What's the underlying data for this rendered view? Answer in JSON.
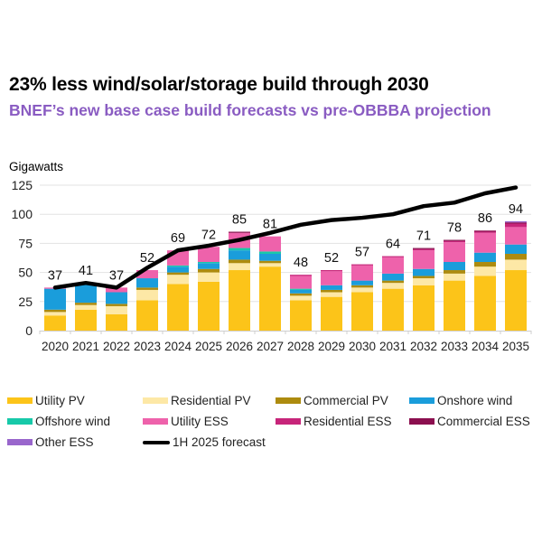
{
  "chart_data": {
    "type": "bar",
    "stacked": true,
    "title": "23% less wind/solar/storage build through 2030",
    "subtitle": "BNEF’s new base case build forecasts vs pre-OBBBA projection",
    "ylabel": "Gigawatts",
    "xlabel": "",
    "ylim": [
      0,
      125
    ],
    "yticks": [
      0,
      25,
      50,
      75,
      100,
      125
    ],
    "grid": true,
    "legend_position": "bottom",
    "categories": [
      "2020",
      "2021",
      "2022",
      "2023",
      "2024",
      "2025",
      "2026",
      "2027",
      "2028",
      "2029",
      "2030",
      "2031",
      "2032",
      "2033",
      "2034",
      "2035"
    ],
    "totals": [
      37,
      41,
      37,
      52,
      69,
      72,
      85,
      81,
      48,
      52,
      57,
      64,
      71,
      78,
      86,
      94
    ],
    "series": [
      {
        "name": "Utility PV",
        "color": "#fcc419",
        "values": [
          13,
          18,
          14,
          26,
          40,
          42,
          52,
          55,
          26,
          29,
          33,
          36,
          39,
          43,
          47,
          52
        ]
      },
      {
        "name": "Residential PV",
        "color": "#fde8a6",
        "values": [
          3,
          4,
          7,
          9,
          8,
          8,
          6,
          3,
          4,
          4,
          4,
          5,
          6,
          6,
          8,
          9
        ]
      },
      {
        "name": "Commercial PV",
        "color": "#ad8b0f",
        "values": [
          2,
          2,
          2,
          2,
          2,
          3,
          3,
          2,
          2,
          2,
          2,
          2,
          2,
          3,
          4,
          5
        ]
      },
      {
        "name": "Onshore wind",
        "color": "#1a9ddb",
        "values": [
          18,
          16,
          10,
          8,
          5,
          5,
          8,
          6,
          3,
          4,
          4,
          6,
          6,
          7,
          8,
          8
        ]
      },
      {
        "name": "Offshore wind",
        "color": "#17c9a9",
        "values": [
          0,
          0,
          0,
          0,
          1,
          1,
          2,
          2,
          1,
          0,
          0,
          0,
          0,
          0,
          0,
          0
        ]
      },
      {
        "name": "Utility ESS",
        "color": "#ee62ab",
        "values": [
          1,
          1,
          4,
          7,
          13,
          13,
          13,
          13,
          11,
          12,
          13,
          14,
          16,
          17,
          17,
          15
        ]
      },
      {
        "name": "Residential ESS",
        "color": "#c7257a",
        "values": [
          0,
          0,
          0,
          0,
          0,
          0,
          0,
          0,
          1,
          1,
          1,
          1,
          1,
          1,
          1,
          3
        ]
      },
      {
        "name": "Commercial ESS",
        "color": "#8b0f4f",
        "values": [
          0,
          0,
          0,
          0,
          0,
          0,
          1,
          0,
          0,
          0,
          0,
          0,
          1,
          1,
          1,
          1
        ]
      },
      {
        "name": "Other ESS",
        "color": "#9966cc",
        "values": [
          0,
          0,
          0,
          0,
          0,
          0,
          0,
          0,
          0,
          0,
          0,
          0,
          0,
          0,
          0,
          1
        ]
      }
    ],
    "line_series": {
      "name": "1H 2025 forecast",
      "color": "#000000",
      "values": [
        37,
        41,
        37,
        54,
        69,
        73,
        78,
        84,
        91,
        95,
        97,
        100,
        107,
        110,
        118,
        123
      ]
    }
  }
}
